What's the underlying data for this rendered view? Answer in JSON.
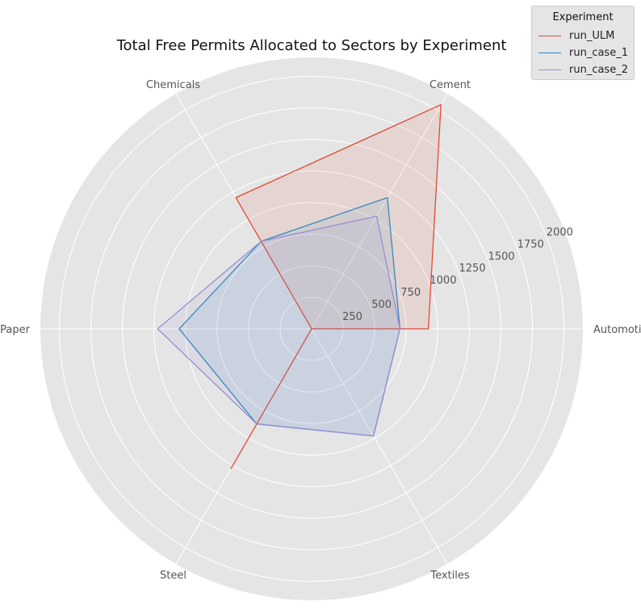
{
  "chart_data": {
    "type": "radar",
    "title": "Total Free Permits Allocated to Sectors by Experiment",
    "categories": [
      "Automotive",
      "Cement",
      "Chemicals",
      "Paper",
      "Steel",
      "Textiles"
    ],
    "r_ticks": [
      250,
      500,
      750,
      1000,
      1250,
      1500,
      1750,
      2000
    ],
    "r_max": 2150,
    "grid": true,
    "legend": {
      "title": "Experiment",
      "placement": "top-right"
    },
    "series": [
      {
        "name": "run_ULM",
        "color": "#E24A33",
        "values": [
          925,
          2050,
          1200,
          0,
          1280,
          0
        ]
      },
      {
        "name": "run_case_1",
        "color": "#348ABD",
        "values": [
          700,
          1200,
          800,
          1050,
          870,
          980
        ]
      },
      {
        "name": "run_case_2",
        "color": "#988ED5",
        "values": [
          700,
          1030,
          800,
          1220,
          870,
          980
        ]
      }
    ]
  }
}
